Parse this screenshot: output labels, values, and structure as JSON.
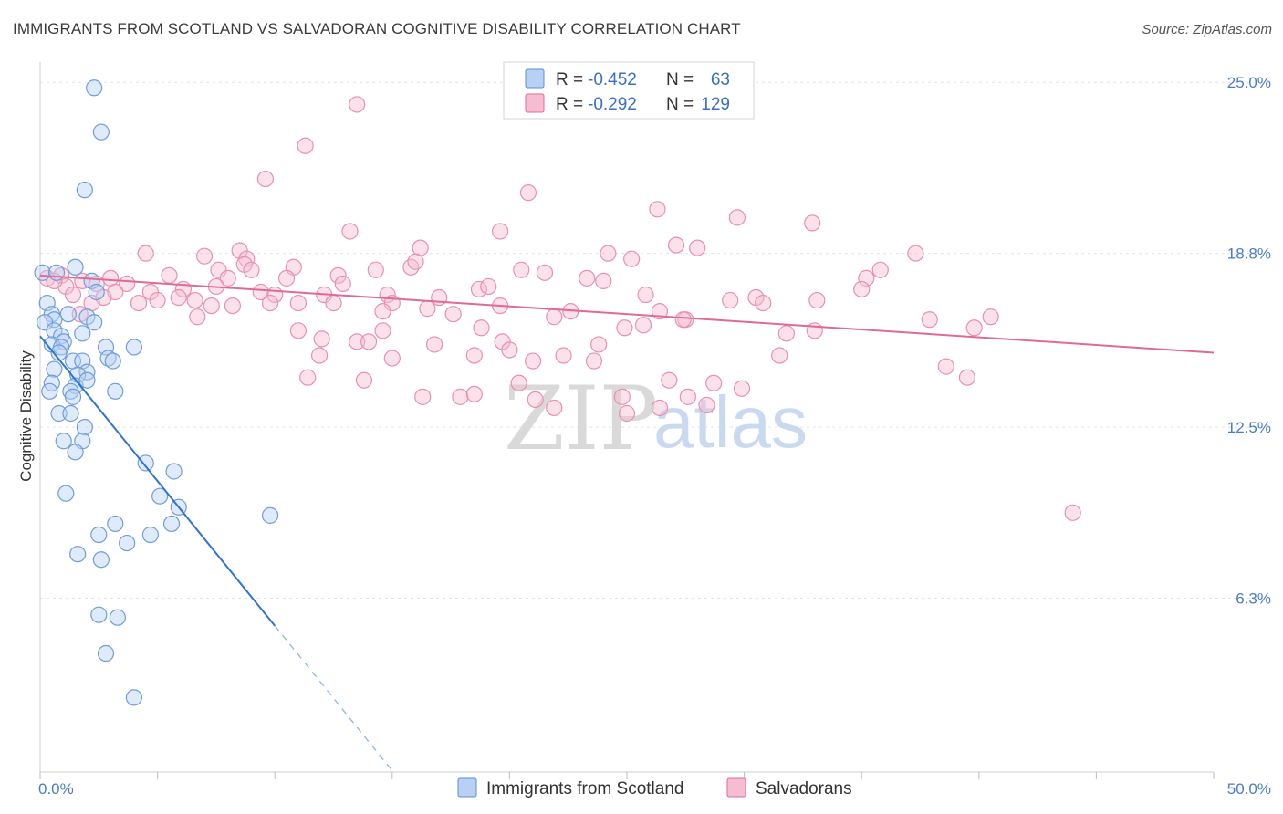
{
  "title": "IMMIGRANTS FROM SCOTLAND VS SALVADORAN COGNITIVE DISABILITY CORRELATION CHART",
  "source": "Source: ZipAtlas.com",
  "watermark": {
    "zip": "ZIP",
    "atlas": "atlas"
  },
  "legend": {
    "rows": [
      {
        "r_label": "R =",
        "r_value": "-0.452",
        "n_label": "N =",
        "n_value": "63"
      },
      {
        "r_label": "R =",
        "r_value": "-0.292",
        "n_label": "N =",
        "n_value": "129"
      }
    ]
  },
  "colors": {
    "blue": "#5b8fd6",
    "blue_fill": "#b7d0f3",
    "pink": "#e06a97",
    "pink_fill": "#f6bcd1"
  },
  "chart_data": {
    "type": "scatter",
    "xlabel": "",
    "ylabel": "Cognitive Disability",
    "xlim": [
      0,
      50
    ],
    "ylim": [
      0,
      26
    ],
    "x_tick_labels": [
      "0.0%",
      "50.0%"
    ],
    "y_ticks": [
      6.3,
      12.5,
      18.8,
      25.0
    ],
    "y_tick_labels": [
      "6.3%",
      "12.5%",
      "18.8%",
      "25.0%"
    ],
    "grid": true,
    "legend_position": "top-center",
    "series": [
      {
        "name": "Immigrants from Scotland",
        "color": "#5b8fd6",
        "trend": {
          "x0": 0,
          "y0": 15.8,
          "x1": 10,
          "y1": 5.3,
          "dash_to_x": 15
        }
      },
      {
        "name": "Salvadorans",
        "color": "#e06a97",
        "trend": {
          "x0": 0,
          "y0": 18.0,
          "x1": 50,
          "y1": 15.2
        }
      }
    ],
    "points_blue": [
      [
        2.3,
        24.8
      ],
      [
        2.6,
        23.2
      ],
      [
        1.9,
        21.1
      ],
      [
        1.5,
        18.3
      ],
      [
        2.2,
        17.8
      ],
      [
        2.4,
        17.4
      ],
      [
        0.3,
        17.0
      ],
      [
        0.5,
        16.6
      ],
      [
        1.2,
        16.6
      ],
      [
        2.0,
        16.5
      ],
      [
        0.6,
        16.4
      ],
      [
        0.2,
        16.3
      ],
      [
        2.3,
        16.3
      ],
      [
        0.6,
        16.0
      ],
      [
        1.8,
        15.9
      ],
      [
        0.9,
        15.8
      ],
      [
        1.0,
        15.6
      ],
      [
        0.5,
        15.5
      ],
      [
        0.9,
        15.4
      ],
      [
        2.8,
        15.4
      ],
      [
        4.0,
        15.4
      ],
      [
        0.8,
        15.2
      ],
      [
        1.4,
        14.9
      ],
      [
        2.9,
        15.0
      ],
      [
        1.8,
        14.9
      ],
      [
        3.1,
        14.9
      ],
      [
        0.6,
        14.6
      ],
      [
        2.0,
        14.5
      ],
      [
        1.6,
        14.4
      ],
      [
        0.5,
        14.1
      ],
      [
        1.5,
        14.0
      ],
      [
        1.3,
        13.8
      ],
      [
        2.0,
        14.2
      ],
      [
        0.4,
        13.8
      ],
      [
        1.4,
        13.6
      ],
      [
        3.2,
        13.8
      ],
      [
        0.8,
        13.0
      ],
      [
        1.3,
        13.0
      ],
      [
        1.9,
        12.5
      ],
      [
        1.0,
        12.0
      ],
      [
        1.8,
        12.0
      ],
      [
        1.5,
        11.6
      ],
      [
        4.5,
        11.2
      ],
      [
        5.7,
        10.9
      ],
      [
        1.1,
        10.1
      ],
      [
        5.1,
        10.0
      ],
      [
        5.9,
        9.6
      ],
      [
        9.8,
        9.3
      ],
      [
        3.2,
        9.0
      ],
      [
        5.6,
        9.0
      ],
      [
        2.5,
        8.6
      ],
      [
        4.7,
        8.6
      ],
      [
        3.7,
        8.3
      ],
      [
        1.6,
        7.9
      ],
      [
        2.6,
        7.7
      ],
      [
        2.5,
        5.7
      ],
      [
        3.3,
        5.6
      ],
      [
        2.8,
        4.3
      ],
      [
        4.0,
        2.7
      ],
      [
        0.1,
        18.1
      ],
      [
        0.7,
        18.1
      ]
    ],
    "points_pink": [
      [
        13.5,
        24.2
      ],
      [
        11.3,
        22.7
      ],
      [
        9.6,
        21.5
      ],
      [
        20.8,
        21.0
      ],
      [
        26.3,
        20.4
      ],
      [
        29.7,
        20.1
      ],
      [
        32.9,
        19.9
      ],
      [
        13.2,
        19.6
      ],
      [
        19.6,
        19.6
      ],
      [
        16.2,
        19.0
      ],
      [
        27.1,
        19.1
      ],
      [
        28.0,
        19.0
      ],
      [
        8.5,
        18.9
      ],
      [
        4.5,
        18.8
      ],
      [
        7.0,
        18.7
      ],
      [
        24.2,
        18.8
      ],
      [
        25.2,
        18.6
      ],
      [
        37.3,
        18.8
      ],
      [
        8.8,
        18.6
      ],
      [
        10.8,
        18.3
      ],
      [
        15.8,
        18.3
      ],
      [
        7.6,
        18.2
      ],
      [
        8.7,
        18.4
      ],
      [
        14.3,
        18.2
      ],
      [
        16.0,
        18.5
      ],
      [
        20.5,
        18.2
      ],
      [
        21.5,
        18.1
      ],
      [
        9.0,
        18.2
      ],
      [
        12.7,
        18.0
      ],
      [
        5.5,
        18.0
      ],
      [
        8.0,
        17.9
      ],
      [
        10.5,
        17.9
      ],
      [
        23.3,
        17.9
      ],
      [
        24.0,
        17.8
      ],
      [
        35.2,
        17.9
      ],
      [
        35.8,
        18.2
      ],
      [
        3.0,
        17.9
      ],
      [
        3.7,
        17.7
      ],
      [
        1.8,
        17.8
      ],
      [
        7.5,
        17.6
      ],
      [
        12.9,
        17.7
      ],
      [
        18.7,
        17.5
      ],
      [
        19.1,
        17.6
      ],
      [
        3.2,
        17.4
      ],
      [
        4.7,
        17.4
      ],
      [
        6.1,
        17.5
      ],
      [
        9.4,
        17.4
      ],
      [
        10.0,
        17.3
      ],
      [
        12.1,
        17.3
      ],
      [
        14.8,
        17.3
      ],
      [
        17.0,
        17.2
      ],
      [
        25.8,
        17.3
      ],
      [
        30.5,
        17.2
      ],
      [
        30.8,
        17.0
      ],
      [
        4.2,
        17.0
      ],
      [
        5.0,
        17.1
      ],
      [
        5.9,
        17.2
      ],
      [
        6.6,
        17.1
      ],
      [
        8.2,
        16.9
      ],
      [
        11.0,
        17.0
      ],
      [
        12.5,
        17.0
      ],
      [
        15.0,
        17.0
      ],
      [
        16.5,
        16.8
      ],
      [
        19.6,
        16.9
      ],
      [
        26.4,
        16.7
      ],
      [
        33.1,
        17.1
      ],
      [
        37.9,
        16.4
      ],
      [
        39.8,
        16.1
      ],
      [
        6.7,
        16.5
      ],
      [
        11.0,
        16.0
      ],
      [
        14.6,
        16.7
      ],
      [
        17.6,
        16.6
      ],
      [
        21.9,
        16.5
      ],
      [
        24.9,
        16.1
      ],
      [
        12.0,
        15.7
      ],
      [
        13.5,
        15.6
      ],
      [
        14.0,
        15.6
      ],
      [
        16.8,
        15.5
      ],
      [
        19.7,
        15.6
      ],
      [
        23.8,
        15.5
      ],
      [
        25.7,
        16.2
      ],
      [
        27.5,
        16.4
      ],
      [
        33.0,
        16.0
      ],
      [
        40.5,
        16.5
      ],
      [
        11.9,
        15.1
      ],
      [
        15.0,
        15.0
      ],
      [
        18.5,
        15.1
      ],
      [
        20.0,
        15.3
      ],
      [
        21.0,
        14.9
      ],
      [
        22.3,
        15.1
      ],
      [
        31.5,
        15.1
      ],
      [
        13.8,
        14.2
      ],
      [
        11.4,
        14.3
      ],
      [
        17.9,
        13.6
      ],
      [
        21.1,
        13.5
      ],
      [
        24.8,
        13.6
      ],
      [
        27.6,
        13.6
      ],
      [
        28.7,
        14.1
      ],
      [
        29.9,
        13.9
      ],
      [
        38.6,
        14.7
      ],
      [
        39.5,
        14.3
      ],
      [
        18.5,
        13.7
      ],
      [
        16.3,
        13.6
      ],
      [
        25.0,
        13.0
      ],
      [
        26.4,
        13.2
      ],
      [
        28.4,
        13.3
      ],
      [
        21.9,
        13.2
      ],
      [
        44.0,
        9.4
      ],
      [
        0.3,
        17.9
      ],
      [
        0.9,
        18.0
      ],
      [
        1.1,
        17.6
      ],
      [
        2.4,
        17.7
      ],
      [
        0.6,
        17.8
      ],
      [
        1.4,
        17.3
      ],
      [
        2.7,
        17.2
      ],
      [
        2.2,
        17.0
      ],
      [
        1.7,
        16.6
      ],
      [
        7.3,
        16.9
      ],
      [
        9.8,
        17.0
      ],
      [
        14.6,
        16.0
      ],
      [
        18.8,
        16.1
      ],
      [
        22.6,
        16.7
      ],
      [
        27.4,
        16.4
      ],
      [
        29.4,
        17.1
      ],
      [
        31.8,
        15.9
      ],
      [
        35.0,
        17.5
      ],
      [
        23.6,
        14.9
      ],
      [
        20.4,
        14.1
      ],
      [
        26.8,
        14.2
      ]
    ]
  },
  "bottom_legend": {
    "items": [
      {
        "label": "Immigrants from Scotland"
      },
      {
        "label": "Salvadorans"
      }
    ]
  }
}
